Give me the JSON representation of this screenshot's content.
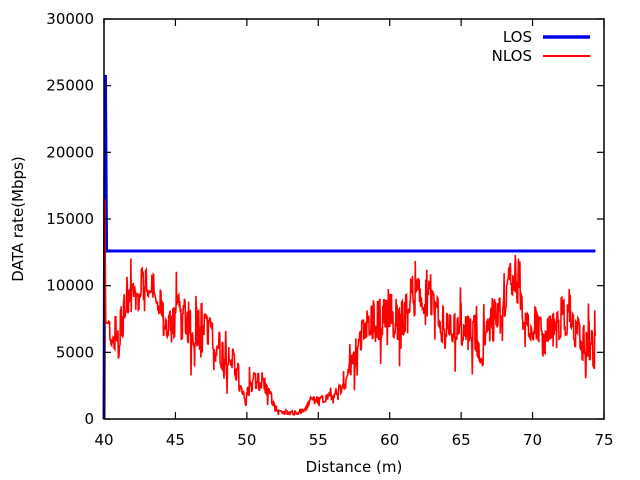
{
  "chart_data": {
    "type": "line",
    "xlabel": "Distance (m)",
    "ylabel": "DATA rate(Mbps)",
    "xlim": [
      40,
      75
    ],
    "ylim": [
      0,
      30000
    ],
    "x_ticks": [
      40,
      45,
      50,
      55,
      60,
      65,
      70,
      75
    ],
    "y_ticks": [
      0,
      5000,
      10000,
      15000,
      20000,
      25000,
      30000
    ],
    "x_tick_labels": [
      "40",
      "45",
      "50",
      "55",
      "60",
      "65",
      "70",
      "75"
    ],
    "y_tick_labels": [
      "0",
      "5000",
      "10000",
      "15000",
      "20000",
      "25000",
      "30000"
    ],
    "grid": false,
    "legend_position": "top-right",
    "series": [
      {
        "name": "LOS",
        "color": "#0000ee",
        "x": [
          40.0,
          40.05,
          40.1,
          40.18,
          74.4
        ],
        "y": [
          0,
          16500,
          25800,
          12600,
          12600
        ]
      },
      {
        "name": "NLOS",
        "color": "#ff0000",
        "x": [
          40.0,
          40.06,
          40.12,
          40.5,
          41.0,
          41.5,
          42.0,
          42.5,
          43.0,
          43.5,
          44.0,
          44.5,
          45.0,
          45.5,
          46.0,
          46.5,
          47.0,
          47.5,
          48.0,
          48.5,
          49.0,
          49.5,
          50.0,
          50.5,
          51.0,
          51.5,
          52.0,
          52.5,
          53.0,
          53.5,
          54.0,
          54.5,
          55.0,
          55.5,
          56.0,
          56.5,
          57.0,
          57.5,
          58.0,
          58.5,
          59.0,
          59.5,
          60.0,
          60.5,
          61.0,
          61.5,
          62.0,
          62.5,
          63.0,
          63.5,
          64.0,
          64.5,
          65.0,
          65.5,
          66.0,
          66.5,
          67.0,
          67.5,
          68.0,
          68.5,
          69.0,
          69.5,
          70.0,
          70.5,
          71.0,
          71.5,
          72.0,
          72.5,
          73.0,
          73.5,
          74.0,
          74.4
        ],
        "y": [
          0,
          16500,
          7000,
          6500,
          6000,
          8000,
          9000,
          9500,
          10500,
          10000,
          8000,
          7000,
          7500,
          8500,
          6500,
          7000,
          7500,
          6000,
          5500,
          4500,
          4500,
          3000,
          1500,
          2800,
          2800,
          2000,
          800,
          500,
          500,
          500,
          600,
          1500,
          1500,
          1500,
          1800,
          2000,
          3000,
          4200,
          6000,
          6500,
          7500,
          7500,
          7500,
          7000,
          8000,
          8500,
          9000,
          9000,
          8500,
          7500,
          7000,
          6500,
          7000,
          6500,
          6500,
          5500,
          6500,
          8000,
          9000,
          10500,
          10000,
          8000,
          7000,
          6500,
          6000,
          7000,
          7500,
          8000,
          7000,
          6000,
          6000,
          4800
        ],
        "amplitude": [
          0,
          0,
          1000,
          1300,
          2000,
          2200,
          2000,
          1800,
          1600,
          1700,
          1800,
          2000,
          1800,
          1700,
          1800,
          1700,
          1800,
          1500,
          1500,
          1400,
          1300,
          1100,
          1000,
          800,
          800,
          700,
          300,
          200,
          200,
          200,
          200,
          300,
          300,
          300,
          400,
          600,
          900,
          1300,
          1600,
          1800,
          1800,
          1800,
          1800,
          1900,
          1800,
          1700,
          1700,
          1700,
          1700,
          1800,
          1800,
          1800,
          1800,
          1800,
          1800,
          1800,
          1800,
          1700,
          1700,
          1600,
          1600,
          1700,
          1800,
          1800,
          1900,
          1800,
          1800,
          1700,
          1800,
          1800,
          1800,
          1700
        ]
      }
    ]
  }
}
